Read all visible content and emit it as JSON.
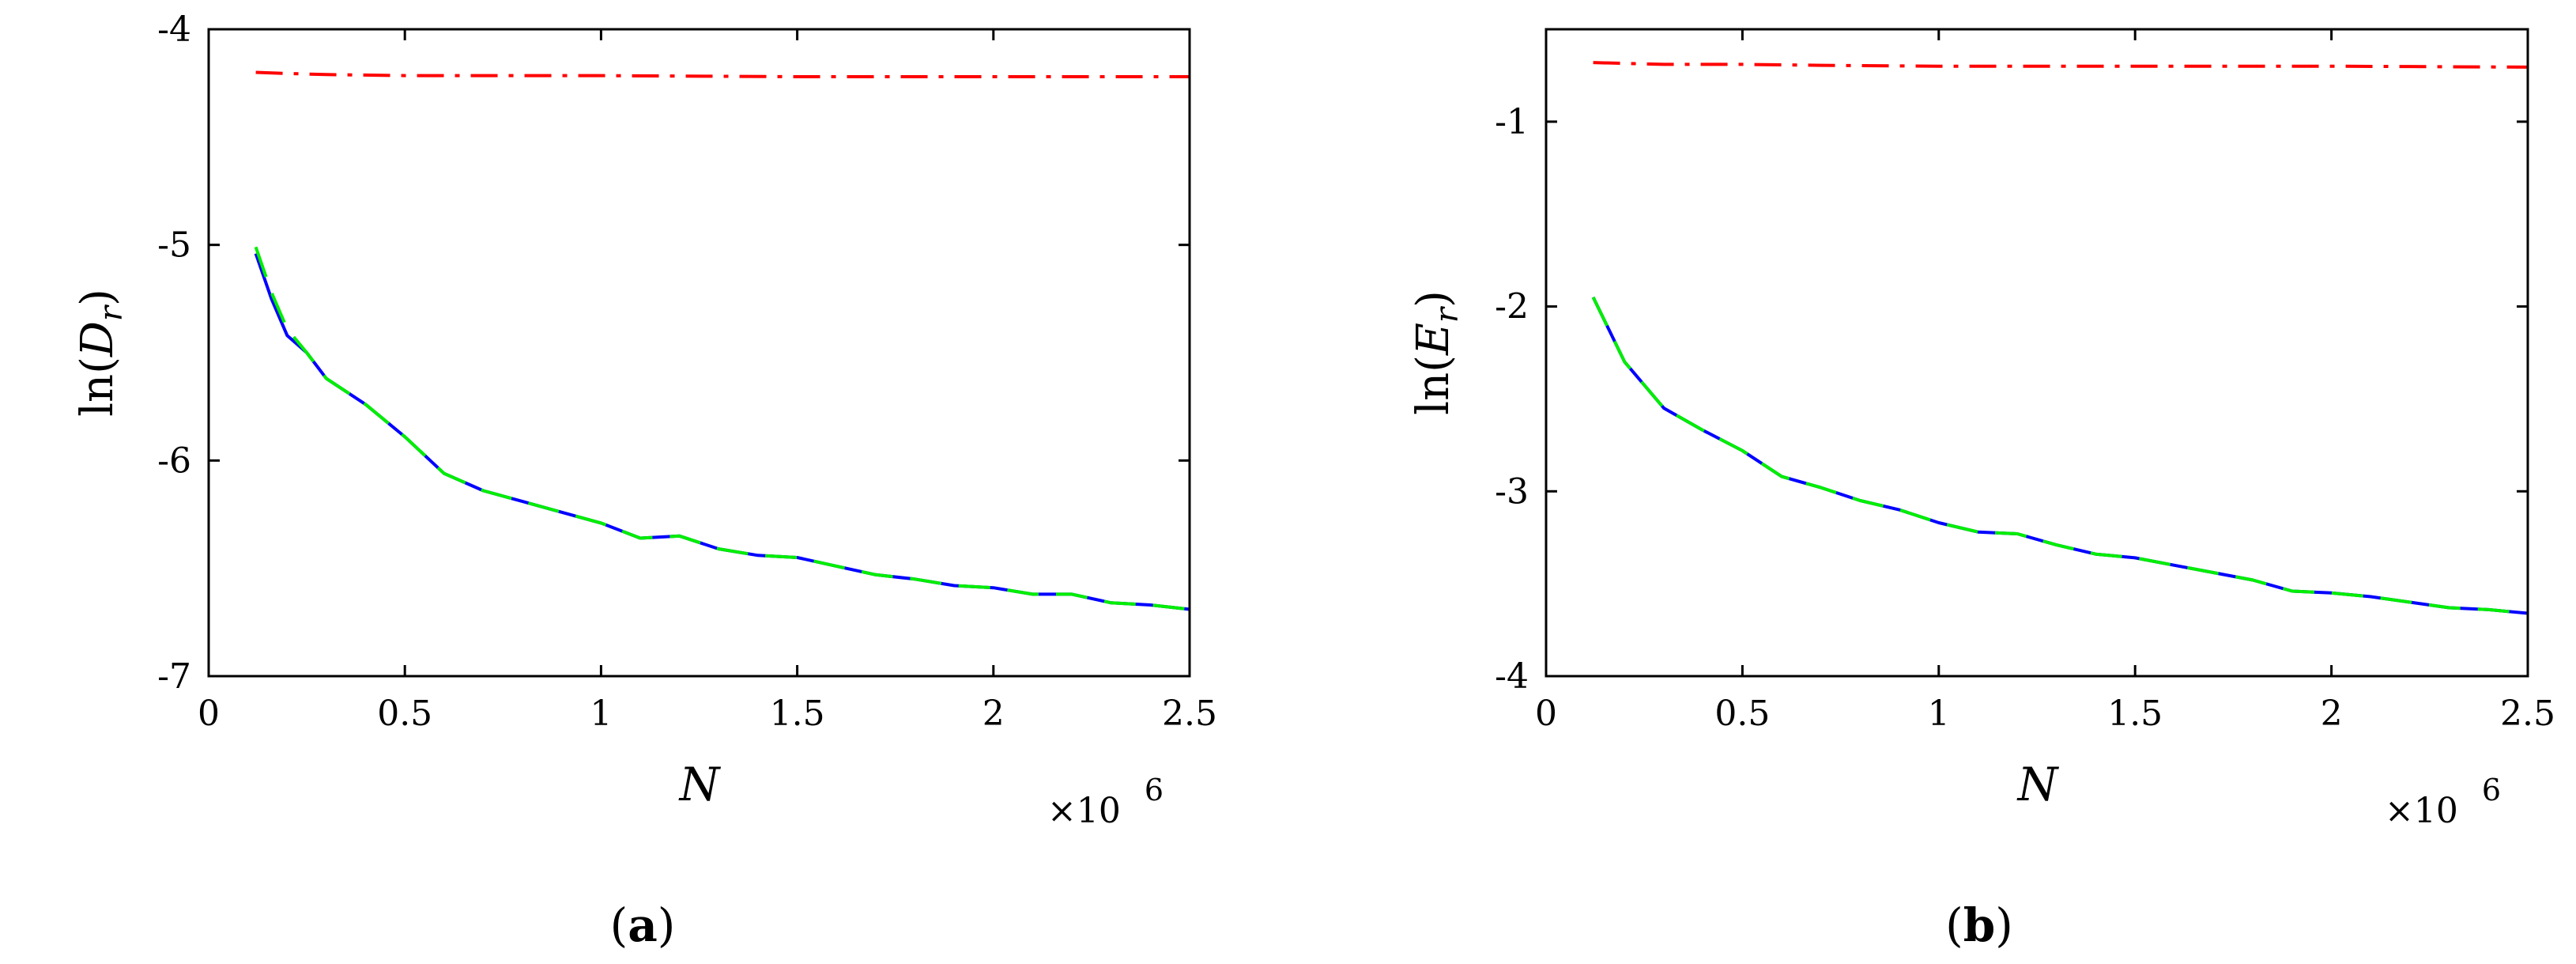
{
  "chart_data": [
    {
      "type": "line",
      "panel_label": "a",
      "xlabel": "N",
      "ylabel_prefix": "ln(",
      "ylabel_var": "D",
      "ylabel_sub": "r",
      "ylabel_suffix": ")",
      "x_multiplier": "×10",
      "x_multiplier_exp": "6",
      "xlim": [
        0,
        2.5
      ],
      "ylim": [
        -7,
        -4
      ],
      "xticks": [
        0,
        0.5,
        1,
        1.5,
        2,
        2.5
      ],
      "xtick_labels": [
        "0",
        "0.5",
        "1",
        "1.5",
        "2",
        "2.5"
      ],
      "yticks": [
        -7,
        -6,
        -5,
        -4
      ],
      "ytick_labels": [
        "-7",
        "-6",
        "-5",
        "-4"
      ],
      "grid": false,
      "series": [
        {
          "color": "#ff0000",
          "style": "dashdot",
          "x": [
            0.12,
            0.2,
            0.3,
            0.5,
            0.7,
            1.0,
            1.5,
            2.0,
            2.5
          ],
          "y": [
            -4.2,
            -4.205,
            -4.21,
            -4.215,
            -4.215,
            -4.215,
            -4.22,
            -4.22,
            -4.22
          ]
        },
        {
          "color": "#0000ff",
          "style": "solid",
          "x": [
            0.12,
            0.16,
            0.2,
            0.25,
            0.3,
            0.4,
            0.5,
            0.6,
            0.7,
            0.8,
            0.9,
            1.0,
            1.1,
            1.2,
            1.3,
            1.4,
            1.5,
            1.6,
            1.7,
            1.8,
            1.9,
            2.0,
            2.1,
            2.2,
            2.3,
            2.4,
            2.5
          ],
          "y": [
            -5.04,
            -5.25,
            -5.42,
            -5.5,
            -5.62,
            -5.74,
            -5.89,
            -6.06,
            -6.14,
            -6.19,
            -6.24,
            -6.29,
            -6.36,
            -6.35,
            -6.41,
            -6.44,
            -6.45,
            -6.49,
            -6.53,
            -6.55,
            -6.58,
            -6.59,
            -6.62,
            -6.62,
            -6.66,
            -6.67,
            -6.69
          ]
        },
        {
          "color": "#00ee00",
          "style": "dashed",
          "x": [
            0.12,
            0.16,
            0.2,
            0.25,
            0.3,
            0.4,
            0.5,
            0.6,
            0.7,
            0.8,
            0.9,
            1.0,
            1.1,
            1.2,
            1.3,
            1.4,
            1.5,
            1.6,
            1.7,
            1.8,
            1.9,
            2.0,
            2.1,
            2.2,
            2.3,
            2.4,
            2.5
          ],
          "y": [
            -5.01,
            -5.22,
            -5.39,
            -5.5,
            -5.62,
            -5.74,
            -5.89,
            -6.06,
            -6.14,
            -6.19,
            -6.24,
            -6.29,
            -6.36,
            -6.35,
            -6.41,
            -6.44,
            -6.45,
            -6.49,
            -6.53,
            -6.55,
            -6.58,
            -6.59,
            -6.62,
            -6.62,
            -6.66,
            -6.67,
            -6.69
          ]
        }
      ]
    },
    {
      "type": "line",
      "panel_label": "b",
      "xlabel": "N",
      "ylabel_prefix": "ln(",
      "ylabel_var": "E",
      "ylabel_sub": "r",
      "ylabel_suffix": ")",
      "x_multiplier": "×10",
      "x_multiplier_exp": "6",
      "xlim": [
        0,
        2.5
      ],
      "ylim": [
        -4,
        -0.5
      ],
      "xticks": [
        0,
        0.5,
        1,
        1.5,
        2,
        2.5
      ],
      "xtick_labels": [
        "0",
        "0.5",
        "1",
        "1.5",
        "2",
        "2.5"
      ],
      "yticks": [
        -4,
        -3,
        -2,
        -1
      ],
      "ytick_labels": [
        "-4",
        "-3",
        "-2",
        "-1"
      ],
      "grid": false,
      "series": [
        {
          "color": "#ff0000",
          "style": "dashdot",
          "x": [
            0.12,
            0.2,
            0.3,
            0.5,
            0.7,
            1.0,
            1.5,
            2.0,
            2.5
          ],
          "y": [
            -0.68,
            -0.685,
            -0.69,
            -0.69,
            -0.695,
            -0.7,
            -0.7,
            -0.7,
            -0.705
          ]
        },
        {
          "color": "#0000ff",
          "style": "solid",
          "x": [
            0.12,
            0.2,
            0.3,
            0.4,
            0.5,
            0.6,
            0.7,
            0.8,
            0.9,
            1.0,
            1.1,
            1.2,
            1.3,
            1.4,
            1.5,
            1.6,
            1.7,
            1.8,
            1.9,
            2.0,
            2.1,
            2.2,
            2.3,
            2.4,
            2.5
          ],
          "y": [
            -1.95,
            -2.3,
            -2.55,
            -2.67,
            -2.78,
            -2.92,
            -2.98,
            -3.05,
            -3.1,
            -3.17,
            -3.22,
            -3.23,
            -3.29,
            -3.34,
            -3.36,
            -3.4,
            -3.44,
            -3.48,
            -3.54,
            -3.55,
            -3.57,
            -3.6,
            -3.63,
            -3.64,
            -3.66
          ]
        },
        {
          "color": "#00ee00",
          "style": "dashed",
          "x": [
            0.12,
            0.2,
            0.3,
            0.4,
            0.5,
            0.6,
            0.7,
            0.8,
            0.9,
            1.0,
            1.1,
            1.2,
            1.3,
            1.4,
            1.5,
            1.6,
            1.7,
            1.8,
            1.9,
            2.0,
            2.1,
            2.2,
            2.3,
            2.4,
            2.5
          ],
          "y": [
            -1.95,
            -2.3,
            -2.55,
            -2.67,
            -2.78,
            -2.92,
            -2.98,
            -3.05,
            -3.1,
            -3.17,
            -3.22,
            -3.23,
            -3.29,
            -3.34,
            -3.36,
            -3.4,
            -3.44,
            -3.48,
            -3.54,
            -3.55,
            -3.57,
            -3.6,
            -3.63,
            -3.64,
            -3.66
          ]
        }
      ]
    }
  ]
}
